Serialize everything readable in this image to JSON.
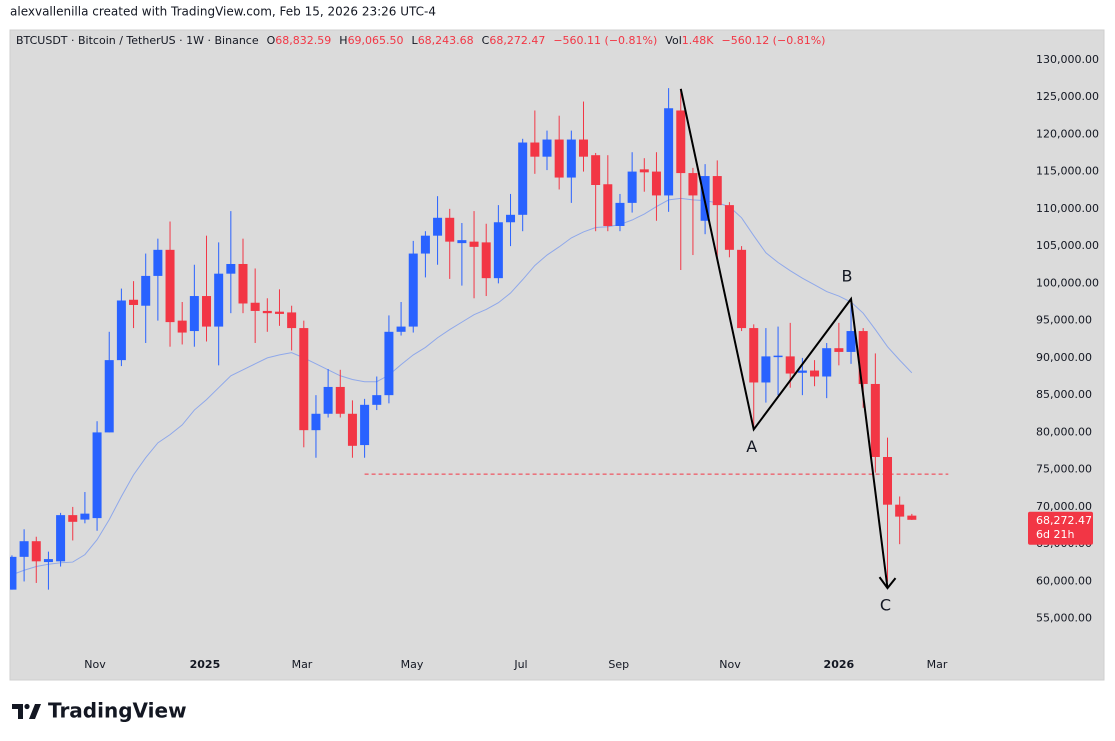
{
  "attribution": "alexvallenilla created with TradingView.com, Feb 15, 2026 23:26 UTC-4",
  "logo": "TradingView",
  "chart_data": {
    "type": "candlestick",
    "symbol": "BTCUSDT · Bitcoin / TetherUS · 1W · Binance",
    "legend_items": [
      {
        "key": "O",
        "value": "68,832.59"
      },
      {
        "key": "H",
        "value": "69,065.50"
      },
      {
        "key": "L",
        "value": "68,243.68"
      },
      {
        "key": "C",
        "value": "68,272.47"
      },
      {
        "value": "−560.11 (−0.81%)"
      },
      {
        "key": "Vol",
        "value": "1.48K"
      },
      {
        "value": "−560.12 (−0.81%)"
      }
    ],
    "up_color": "#2962ff",
    "down_color": "#f23645",
    "open": [
      58900,
      63300,
      65400,
      62600,
      62700,
      68900,
      68300,
      68500,
      80000,
      89700,
      97800,
      97000,
      101000,
      104500,
      95000,
      93600,
      98300,
      94200,
      101300,
      102600,
      97400,
      96300,
      96200,
      96100,
      94000,
      80300,
      82500,
      86100,
      82500,
      78300,
      83700,
      85000,
      93500,
      94200,
      104000,
      106400,
      108800,
      105400,
      105600,
      105500,
      100700,
      108200,
      109200,
      118900,
      117000,
      119300,
      114200,
      119300,
      117200,
      113300,
      107700,
      110800,
      115300,
      115000,
      111800,
      123200,
      114800,
      108400,
      114400,
      110500,
      104500,
      94000,
      86700,
      90100,
      90200,
      88000,
      88300,
      87500,
      91300,
      90800,
      93600,
      86500,
      76700,
      70300,
      68832.59
    ],
    "high": [
      63500,
      67000,
      66000,
      64000,
      69200,
      70000,
      72000,
      81500,
      93500,
      99300,
      100300,
      104000,
      106000,
      108300,
      97500,
      102500,
      106400,
      105500,
      109700,
      106000,
      102000,
      98000,
      99200,
      97000,
      95000,
      85000,
      88500,
      88400,
      84300,
      84500,
      87500,
      95700,
      97500,
      105700,
      107000,
      111700,
      110000,
      108100,
      109700,
      108000,
      110500,
      112000,
      119400,
      123200,
      120500,
      122500,
      120500,
      124400,
      117500,
      117200,
      112000,
      117600,
      116800,
      117600,
      126200,
      126100,
      115500,
      116000,
      116500,
      110900,
      105000,
      94500,
      94000,
      94200,
      94700,
      90000,
      89700,
      92000,
      94700,
      97900,
      94000,
      90600,
      79300,
      71400,
      69065.5
    ],
    "low": [
      58900,
      60000,
      59800,
      58900,
      62000,
      65500,
      67800,
      66800,
      80000,
      88900,
      94000,
      92000,
      95000,
      91500,
      91800,
      91500,
      92200,
      89000,
      96000,
      96000,
      92000,
      93500,
      94300,
      91000,
      78000,
      76600,
      82000,
      82000,
      76600,
      76600,
      83000,
      83900,
      93000,
      93400,
      100800,
      102500,
      100600,
      99700,
      98000,
      98300,
      100000,
      105000,
      107000,
      114700,
      115200,
      112600,
      110800,
      115000,
      107000,
      107000,
      107000,
      109500,
      112300,
      108400,
      109600,
      101800,
      103800,
      106600,
      103500,
      103500,
      93600,
      80600,
      84000,
      85000,
      86000,
      85000,
      86200,
      84600,
      89000,
      89200,
      83300,
      74600,
      60000,
      65000,
      68243.68
    ],
    "close": [
      63300,
      65400,
      62700,
      63000,
      68900,
      68000,
      69100,
      80000,
      89700,
      97700,
      97100,
      101000,
      104500,
      94800,
      93400,
      98300,
      94200,
      101300,
      102600,
      97300,
      96300,
      96000,
      95900,
      94000,
      80300,
      82500,
      86100,
      82500,
      78200,
      83700,
      85000,
      93500,
      94200,
      104000,
      106400,
      108800,
      105600,
      105800,
      104900,
      100700,
      108200,
      109200,
      118900,
      117000,
      119300,
      114200,
      119300,
      117000,
      113200,
      107700,
      110800,
      115000,
      114900,
      111800,
      123500,
      114800,
      111800,
      114400,
      110500,
      104500,
      94000,
      86700,
      90200,
      90300,
      87900,
      88300,
      87500,
      91300,
      90800,
      93600,
      86500,
      76700,
      70300,
      68700,
      68272.47
    ],
    "ma": {
      "color": "#8fa8ea",
      "values": [
        60900,
        61500,
        62000,
        62300,
        62500,
        62600,
        63600,
        65600,
        68300,
        71400,
        74300,
        76600,
        78600,
        79700,
        81000,
        83000,
        84400,
        86000,
        87600,
        88400,
        89200,
        90000,
        90400,
        90700,
        90000,
        89200,
        88400,
        87600,
        87100,
        86800,
        86800,
        87700,
        89100,
        90400,
        91400,
        92700,
        93800,
        94800,
        95800,
        96500,
        97400,
        98700,
        100500,
        102400,
        103800,
        104900,
        106100,
        106900,
        107500,
        107600,
        107900,
        108500,
        109300,
        110300,
        111200,
        111400,
        111200,
        111100,
        110800,
        110300,
        108800,
        106400,
        104100,
        102800,
        101700,
        100700,
        99800,
        98900,
        98300,
        97500,
        96000,
        93800,
        91500,
        89700,
        88000
      ]
    },
    "hline": {
      "y": 74400,
      "x_start": 29,
      "x_end": 77,
      "color": "#f23645"
    },
    "wave": {
      "color": "#000000",
      "points": [
        {
          "x": 55,
          "y": 126100
        },
        {
          "x": 61,
          "y": 80400,
          "label": "A"
        },
        {
          "x": 69,
          "y": 97900,
          "label": "B"
        },
        {
          "x": 72,
          "y": 59100,
          "label": "C"
        }
      ]
    },
    "last_price": {
      "label": "68,272.47",
      "countdown": "6d 21h"
    },
    "xlim": [
      -0.16,
      83.06
    ],
    "ylim": [
      50800,
      134000
    ],
    "grid": false,
    "xticks": [
      {
        "value": 6.83,
        "label": "Nov"
      },
      {
        "value": 15.87,
        "label": "2025"
      },
      {
        "value": 23.85,
        "label": "Mar"
      },
      {
        "value": 32.9,
        "label": "May"
      },
      {
        "value": 41.86,
        "label": "Jul"
      },
      {
        "value": 49.9,
        "label": "Sep"
      },
      {
        "value": 59.05,
        "label": "Nov"
      },
      {
        "value": 68.0,
        "label": "2026"
      },
      {
        "value": 76.07,
        "label": "Mar"
      }
    ],
    "yticks": [
      {
        "value": 55000,
        "label": "55,000.00"
      },
      {
        "value": 60000,
        "label": "60,000.00"
      },
      {
        "value": 65000,
        "label": "65,000.00"
      },
      {
        "value": 70000,
        "label": "70,000.00"
      },
      {
        "value": 75000,
        "label": "75,000.00"
      },
      {
        "value": 80000,
        "label": "80,000.00"
      },
      {
        "value": 85000,
        "label": "85,000.00"
      },
      {
        "value": 90000,
        "label": "90,000.00"
      },
      {
        "value": 95000,
        "label": "95,000.00"
      },
      {
        "value": 100000,
        "label": "100,000.00"
      },
      {
        "value": 105000,
        "label": "105,000.00"
      },
      {
        "value": 110000,
        "label": "110,000.00"
      },
      {
        "value": 115000,
        "label": "115,000.00"
      },
      {
        "value": 120000,
        "label": "120,000.00"
      },
      {
        "value": 125000,
        "label": "125,000.00"
      },
      {
        "value": 130000,
        "label": "130,000.00"
      }
    ]
  }
}
